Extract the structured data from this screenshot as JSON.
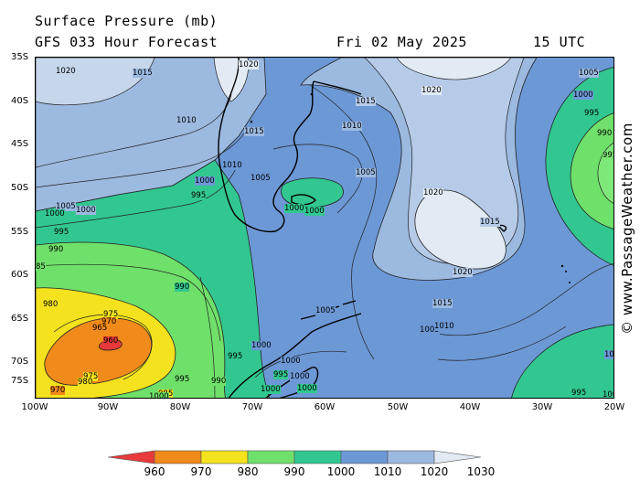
{
  "header": {
    "title": "Surface Pressure (mb)",
    "forecast": "GFS 033 Hour Forecast",
    "date": "Fri 02 May 2025",
    "time": "15 UTC"
  },
  "axes": {
    "lat_labels": [
      "35S",
      "40S",
      "45S",
      "50S",
      "55S",
      "60S",
      "65S",
      "70S",
      "75S"
    ],
    "lon_labels": [
      "100W",
      "90W",
      "80W",
      "70W",
      "60W",
      "50W",
      "40W",
      "30W",
      "20W"
    ]
  },
  "isobar_labels": {
    "l01": "1020",
    "l02": "1015",
    "l03": "1020",
    "l04": "1010",
    "l05": "1015",
    "l06": "1015",
    "l07": "1020",
    "l08": "1010",
    "l09": "1010",
    "l10": "1005",
    "l11": "1005",
    "l12": "1000",
    "l13": "995",
    "l14": "1000",
    "l15": "1000",
    "l16": "995",
    "l17": "990",
    "l18": "85",
    "l19": "990",
    "l20": "980",
    "l21": "975",
    "l22": "970",
    "l23": "965",
    "l24": "960",
    "l25": "970",
    "l26": "975",
    "l27": "980",
    "l28": "995",
    "l29": "985",
    "l30": "1000",
    "l31": "995",
    "l32": "990",
    "l33": "1005",
    "l34": "1000",
    "l35": "1000",
    "l36": "995",
    "l37": "1000",
    "l38": "1005",
    "l39": "1020",
    "l40": "1015",
    "l41": "1020",
    "l42": "1015",
    "l43": "1010",
    "l44": "1005",
    "l45": "1005",
    "l46": "1000",
    "l47": "995",
    "l48": "990",
    "l49": "995",
    "l50": "100",
    "l51": "995",
    "l52": "100",
    "l53": "1000",
    "l54": "1000",
    "l55": "1000",
    "l56": "1000"
  },
  "color_scale": {
    "labels": [
      "960",
      "970",
      "980",
      "990",
      "1000",
      "1010",
      "1020",
      "1030"
    ],
    "colors": [
      "#e83a3a",
      "#f08a1a",
      "#f4e21e",
      "#6fe06a",
      "#32c790",
      "#6c98d6",
      "#9cb9e0",
      "#e2ebf4"
    ]
  },
  "watermark": "© www.PassageWeather.com"
}
